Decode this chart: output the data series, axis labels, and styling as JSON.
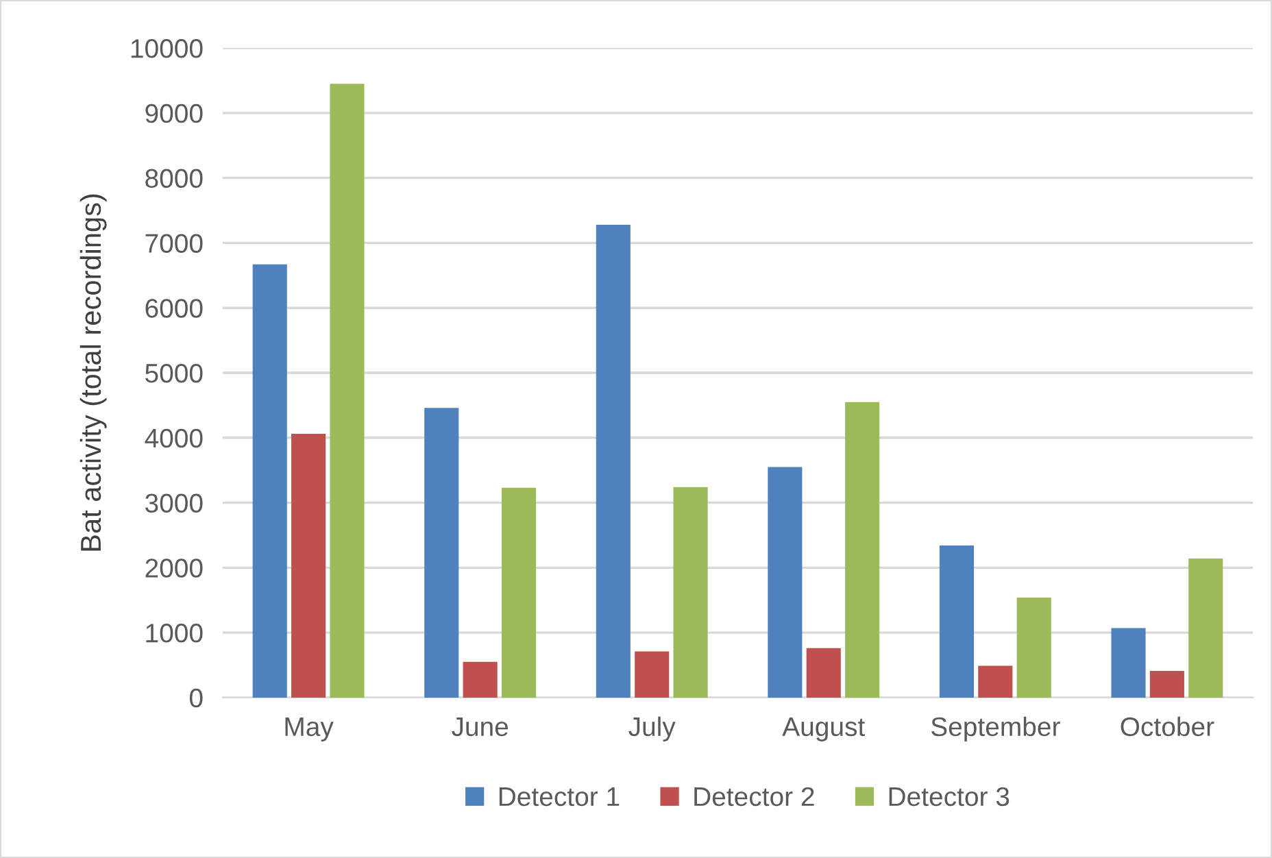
{
  "chart_data": {
    "type": "bar",
    "ylabel": "Bat activity (total recordings)",
    "categories": [
      "May",
      "June",
      "July",
      "August",
      "September",
      "October"
    ],
    "series": [
      {
        "name": "Detector 1",
        "color": "#4f81bd",
        "values": [
          6670,
          4460,
          7280,
          3550,
          2340,
          1070
        ]
      },
      {
        "name": "Detector 2",
        "color": "#c0504d",
        "values": [
          4060,
          550,
          710,
          760,
          490,
          410
        ]
      },
      {
        "name": "Detector 3",
        "color": "#9bbb59",
        "values": [
          9450,
          3230,
          3240,
          4550,
          1540,
          2140
        ]
      }
    ],
    "ylim": [
      0,
      10000
    ],
    "yticks": [
      0,
      1000,
      2000,
      3000,
      4000,
      5000,
      6000,
      7000,
      8000,
      9000,
      10000
    ],
    "grid": "y",
    "legend": "bottom"
  }
}
